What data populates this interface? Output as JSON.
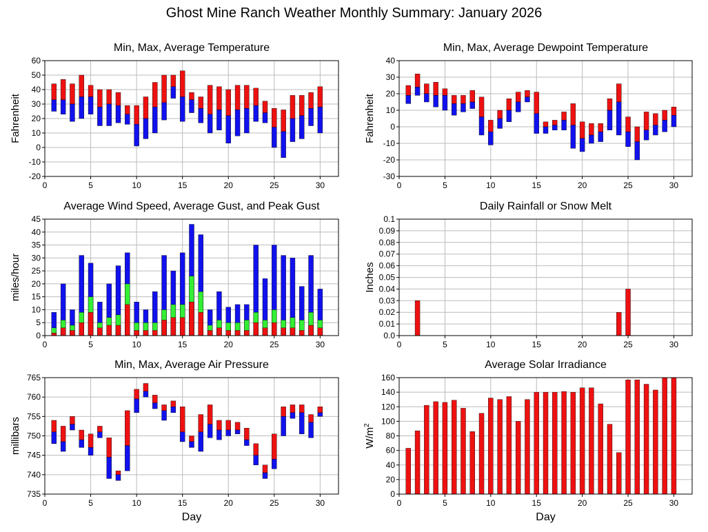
{
  "title": "Ghost Mine Ranch Weather Monthly Summary: January 2026",
  "colors": {
    "red": "#ee1111",
    "blue": "#1111ee",
    "green": "#33ee33",
    "grid": "#bbbbbb",
    "axis": "#000000"
  },
  "chart_data": [
    {
      "id": "temperature",
      "type": "bar",
      "subtype": "floating-range",
      "title": "Min, Max, Average Temperature",
      "ylabel": "Fahrenheit",
      "xlabel": "",
      "ylim": [
        -20,
        60
      ],
      "yticks": [
        -20,
        -10,
        0,
        10,
        20,
        30,
        40,
        50,
        60
      ],
      "xlim": [
        0,
        32
      ],
      "xticks": [
        0,
        5,
        10,
        15,
        20,
        25,
        30
      ],
      "series": [
        {
          "name": "Max",
          "values": [
            44,
            47,
            44,
            50,
            43,
            40,
            40,
            38,
            29,
            29,
            35,
            45,
            50,
            50,
            53,
            38,
            35,
            43,
            42,
            40,
            43,
            43,
            41,
            32,
            27,
            26,
            36,
            36,
            38,
            42
          ]
        },
        {
          "name": "Average",
          "values": [
            33,
            33,
            30,
            35,
            35,
            28,
            30,
            29,
            23,
            16,
            20,
            28,
            31,
            42,
            35,
            33,
            27,
            23,
            26,
            22,
            26,
            27,
            29,
            24,
            14,
            11,
            20,
            22,
            27,
            28
          ]
        },
        {
          "name": "Min",
          "values": [
            25,
            23,
            18,
            20,
            23,
            15,
            15,
            17,
            16,
            1,
            6,
            10,
            19,
            34,
            18,
            24,
            17,
            10,
            12,
            3,
            8,
            10,
            18,
            17,
            0,
            -7,
            4,
            6,
            15,
            10
          ]
        }
      ]
    },
    {
      "id": "dewpoint",
      "type": "bar",
      "subtype": "floating-range",
      "title": "Min, Max, Average Dewpoint Temperature",
      "ylabel": "Fahrenheit",
      "xlabel": "",
      "ylim": [
        -30,
        40
      ],
      "yticks": [
        -30,
        -20,
        -10,
        0,
        10,
        20,
        30,
        40
      ],
      "xlim": [
        0,
        32
      ],
      "xticks": [
        0,
        5,
        10,
        15,
        20,
        25,
        30
      ],
      "series": [
        {
          "name": "Max",
          "values": [
            25,
            32,
            26,
            27,
            23,
            19,
            19,
            22,
            18,
            4,
            10,
            17,
            21,
            22,
            21,
            3,
            4,
            9,
            14,
            3,
            2,
            2,
            17,
            26,
            6,
            0,
            9,
            8,
            10,
            12
          ]
        },
        {
          "name": "Average",
          "values": [
            19,
            24,
            20,
            19,
            19,
            14,
            14,
            15,
            6,
            -3,
            5,
            10,
            15,
            18,
            8,
            0,
            1,
            4,
            1,
            -7,
            -5,
            -3,
            10,
            15,
            -3,
            -9,
            -2,
            1,
            4,
            7
          ]
        },
        {
          "name": "Min",
          "values": [
            14,
            19,
            15,
            12,
            10,
            7,
            9,
            11,
            -5,
            -11,
            -1,
            3,
            9,
            15,
            -4,
            -4,
            -2,
            -2,
            -13,
            -15,
            -10,
            -9,
            -2,
            -5,
            -12,
            -20,
            -8,
            -5,
            -3,
            0
          ]
        }
      ]
    },
    {
      "id": "wind",
      "type": "bar",
      "subtype": "overlaid",
      "title": "Average Wind Speed, Average Gust, and Peak Gust",
      "ylabel": "miles/hour",
      "xlabel": "",
      "ylim": [
        0,
        45
      ],
      "yticks": [
        0,
        5,
        10,
        15,
        20,
        25,
        30,
        35,
        40,
        45
      ],
      "xlim": [
        0,
        32
      ],
      "xticks": [
        0,
        5,
        10,
        15,
        20,
        25,
        30
      ],
      "series": [
        {
          "name": "Peak Gust",
          "values": [
            9,
            20,
            10,
            31,
            28,
            13,
            20,
            27,
            32,
            13,
            10,
            17,
            31,
            25,
            32,
            43,
            39,
            10,
            17,
            11,
            12,
            12,
            35,
            22,
            35,
            31,
            30,
            19,
            31,
            18
          ]
        },
        {
          "name": "Average Gust",
          "values": [
            3,
            6,
            4,
            9,
            15,
            5,
            7,
            8,
            20,
            5,
            5,
            5,
            10,
            12,
            12,
            23,
            17,
            4,
            6,
            5,
            5,
            6,
            9,
            6,
            10,
            6,
            7,
            6,
            9,
            6
          ]
        },
        {
          "name": "Average Wind Speed",
          "values": [
            1,
            3,
            2,
            5,
            9,
            3,
            4,
            4,
            12,
            2,
            2,
            2,
            6,
            7,
            7,
            13,
            9,
            2,
            3,
            2,
            2,
            2,
            5,
            3,
            5,
            3,
            3,
            2,
            4,
            3
          ]
        }
      ]
    },
    {
      "id": "rainfall",
      "type": "bar",
      "title": "Daily Rainfall or Snow Melt",
      "ylabel": "Inches",
      "xlabel": "",
      "ylim": [
        0,
        0.1
      ],
      "yticks": [
        0.0,
        0.01,
        0.02,
        0.03,
        0.04,
        0.05,
        0.06,
        0.07,
        0.08,
        0.09,
        0.1
      ],
      "ytick_labels": [
        "0.0",
        "0.01",
        "0.02",
        "0.03",
        "0.04",
        "0.05",
        "0.06",
        "0.07",
        "0.08",
        "0.09",
        "0.1"
      ],
      "xlim": [
        0,
        32
      ],
      "xticks": [
        0,
        5,
        10,
        15,
        20,
        25,
        30
      ],
      "series": [
        {
          "name": "Rainfall",
          "values": [
            0,
            0.03,
            0,
            0,
            0,
            0,
            0,
            0,
            0,
            0,
            0,
            0,
            0,
            0,
            0,
            0,
            0,
            0,
            0,
            0,
            0,
            0,
            0,
            0.02,
            0.04,
            0,
            0,
            0,
            0,
            0
          ]
        }
      ]
    },
    {
      "id": "pressure",
      "type": "bar",
      "subtype": "floating-range",
      "title": "Min, Max, Average Air Pressure",
      "ylabel": "millibars",
      "xlabel": "Day",
      "ylim": [
        735,
        765
      ],
      "yticks": [
        735,
        740,
        745,
        750,
        755,
        760,
        765
      ],
      "xlim": [
        0,
        32
      ],
      "xticks": [
        0,
        5,
        10,
        15,
        20,
        25,
        30
      ],
      "series": [
        {
          "name": "Max",
          "values": [
            754,
            752.5,
            755,
            751.5,
            750.5,
            752.5,
            749.5,
            741,
            756.5,
            762,
            763.5,
            760.5,
            758,
            759,
            757.5,
            750,
            755.5,
            758,
            754,
            754,
            753.5,
            752,
            748,
            742.5,
            750.5,
            757.5,
            758,
            758,
            755.5,
            757.5
          ]
        },
        {
          "name": "Average",
          "values": [
            751,
            748.5,
            753,
            749,
            747,
            751,
            744.5,
            740,
            747.5,
            759.5,
            761.5,
            758.5,
            756.5,
            757.5,
            751,
            748.5,
            751,
            753,
            751.5,
            751.5,
            751.5,
            749,
            745,
            740.5,
            744,
            755,
            756,
            756,
            753.5,
            756
          ]
        },
        {
          "name": "Min",
          "values": [
            748,
            746,
            751.5,
            747,
            745,
            749.5,
            739,
            738.5,
            741,
            756,
            760,
            757,
            754,
            756,
            748.5,
            747,
            746,
            749.5,
            749,
            750,
            750.5,
            747.5,
            742.5,
            739,
            741.5,
            750,
            754.5,
            750.5,
            749.5,
            755
          ]
        }
      ]
    },
    {
      "id": "solar",
      "type": "bar",
      "title": "Average Solar Irradiance",
      "ylabel": "W/m",
      "ylabel_superscript": "2",
      "xlabel": "Day",
      "ylim": [
        0,
        160
      ],
      "yticks": [
        0,
        20,
        40,
        60,
        80,
        100,
        120,
        140,
        160
      ],
      "xlim": [
        0,
        32
      ],
      "xticks": [
        0,
        5,
        10,
        15,
        20,
        25,
        30
      ],
      "series": [
        {
          "name": "Solar",
          "values": [
            63,
            87,
            122,
            127,
            126,
            129,
            118,
            86,
            111,
            132,
            130,
            134,
            100,
            130,
            140,
            140,
            140,
            141,
            140,
            146,
            146,
            124,
            96,
            57,
            157,
            157,
            151,
            143,
            160,
            160
          ]
        }
      ]
    }
  ]
}
